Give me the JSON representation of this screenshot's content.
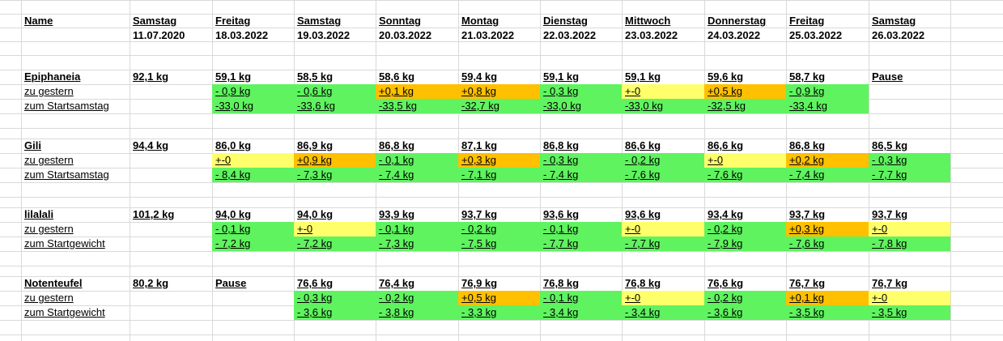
{
  "colors": {
    "green": "#5ff35f",
    "yellow": "#ffff6b",
    "orange": "#ffc000",
    "grid": "#d9d9d9"
  },
  "header": {
    "name_label": "Name",
    "columns": [
      {
        "day": "Samstag",
        "date": "11.07.2020"
      },
      {
        "day": "Freitag",
        "date": "18.03.2022"
      },
      {
        "day": "Samstag",
        "date": "19.03.2022"
      },
      {
        "day": "Sonntag",
        "date": "20.03.2022"
      },
      {
        "day": "Montag",
        "date": "21.03.2022"
      },
      {
        "day": "Dienstag",
        "date": "22.03.2022"
      },
      {
        "day": "Mittwoch",
        "date": "23.03.2022"
      },
      {
        "day": "Donnerstag",
        "date": "24.03.2022"
      },
      {
        "day": "Freitag",
        "date": "25.03.2022"
      },
      {
        "day": "Samstag",
        "date": "26.03.2022"
      }
    ]
  },
  "people": [
    {
      "name": "Epiphaneia",
      "weights": [
        "92,1 kg",
        "59,1 kg",
        "58,5 kg",
        "58,6 kg",
        "59,4 kg",
        "59,1 kg",
        "59,1 kg",
        "59,6 kg",
        "58,7 kg",
        "Pause"
      ],
      "row2_label": "zu gestern",
      "row2": [
        {
          "v": "",
          "c": ""
        },
        {
          "v": "- 0,9 kg",
          "c": "g"
        },
        {
          "v": "- 0,6 kg",
          "c": "g"
        },
        {
          "v": "+0,1 kg",
          "c": "o"
        },
        {
          "v": "+0,8 kg",
          "c": "o"
        },
        {
          "v": "- 0,3 kg",
          "c": "g"
        },
        {
          "v": "+-0",
          "c": "y"
        },
        {
          "v": "+0,5 kg",
          "c": "o"
        },
        {
          "v": "- 0,9 kg",
          "c": "g"
        },
        {
          "v": "",
          "c": ""
        }
      ],
      "row3_label": "zum Startsamstag",
      "row3": [
        {
          "v": "",
          "c": ""
        },
        {
          "v": "-33,0 kg",
          "c": "g"
        },
        {
          "v": "-33,6 kg",
          "c": "g"
        },
        {
          "v": "-33,5 kg",
          "c": "g"
        },
        {
          "v": "-32,7 kg",
          "c": "g"
        },
        {
          "v": "-33,0 kg",
          "c": "g"
        },
        {
          "v": "-33,0 kg",
          "c": "g"
        },
        {
          "v": "-32,5 kg",
          "c": "g"
        },
        {
          "v": "-33,4 kg",
          "c": "g"
        },
        {
          "v": "",
          "c": ""
        }
      ]
    },
    {
      "name": "Gili",
      "weights": [
        "94,4 kg",
        "86,0 kg",
        "86,9 kg",
        "86,8 kg",
        "87,1 kg",
        "86,8 kg",
        "86,6 kg",
        "86,6 kg",
        "86,8 kg",
        "86,5 kg"
      ],
      "row2_label": "zu gestern",
      "row2": [
        {
          "v": "",
          "c": ""
        },
        {
          "v": "+-0",
          "c": "y"
        },
        {
          "v": "+0,9 kg",
          "c": "o"
        },
        {
          "v": "- 0,1 kg",
          "c": "g"
        },
        {
          "v": "+0,3 kg",
          "c": "o"
        },
        {
          "v": "- 0,3 kg",
          "c": "g"
        },
        {
          "v": "- 0,2 kg",
          "c": "g"
        },
        {
          "v": "+-0",
          "c": "y"
        },
        {
          "v": "+0,2 kg",
          "c": "o"
        },
        {
          "v": "- 0,3 kg",
          "c": "g"
        }
      ],
      "row3_label": "zum Startsamstag",
      "row3": [
        {
          "v": "",
          "c": ""
        },
        {
          "v": "- 8,4 kg",
          "c": "g"
        },
        {
          "v": "- 7,3 kg",
          "c": "g"
        },
        {
          "v": "- 7,4 kg",
          "c": "g"
        },
        {
          "v": "- 7,1 kg",
          "c": "g"
        },
        {
          "v": "- 7,4 kg",
          "c": "g"
        },
        {
          "v": "- 7,6 kg",
          "c": "g"
        },
        {
          "v": "- 7,6 kg",
          "c": "g"
        },
        {
          "v": "- 7,4 kg",
          "c": "g"
        },
        {
          "v": "- 7,7 kg",
          "c": "g"
        }
      ]
    },
    {
      "name": "lilalali",
      "weights": [
        "101,2 kg",
        "94,0 kg",
        "94,0 kg",
        "93,9 kg",
        "93,7 kg",
        "93,6 kg",
        "93,6 kg",
        "93,4 kg",
        "93,7 kg",
        "93,7 kg"
      ],
      "row2_label": "zu gestern",
      "row2": [
        {
          "v": "",
          "c": ""
        },
        {
          "v": "- 0,1 kg",
          "c": "g"
        },
        {
          "v": "+-0",
          "c": "y"
        },
        {
          "v": "- 0,1 kg",
          "c": "g"
        },
        {
          "v": "- 0,2 kg",
          "c": "g"
        },
        {
          "v": "- 0,1 kg",
          "c": "g"
        },
        {
          "v": "+-0",
          "c": "y"
        },
        {
          "v": "- 0,2 kg",
          "c": "g"
        },
        {
          "v": "+0,3 kg",
          "c": "o"
        },
        {
          "v": "+-0",
          "c": "y"
        }
      ],
      "row3_label": "zum Startgewicht",
      "row3": [
        {
          "v": "",
          "c": ""
        },
        {
          "v": "- 7,2 kg",
          "c": "g"
        },
        {
          "v": "- 7,2 kg",
          "c": "g"
        },
        {
          "v": "- 7,3 kg",
          "c": "g"
        },
        {
          "v": "- 7,5 kg",
          "c": "g"
        },
        {
          "v": "- 7,7 kg",
          "c": "g"
        },
        {
          "v": "- 7,7 kg",
          "c": "g"
        },
        {
          "v": "- 7,9 kg",
          "c": "g"
        },
        {
          "v": "- 7,6 kg",
          "c": "g"
        },
        {
          "v": "- 7,8 kg",
          "c": "g"
        }
      ]
    },
    {
      "name": "Notenteufel",
      "weights": [
        "80,2 kg",
        "Pause",
        "76,6 kg",
        "76,4 kg",
        "76,9 kg",
        "76,8 kg",
        "76,8 kg",
        "76,6 kg",
        "76,7 kg",
        "76,7 kg"
      ],
      "row2_label": "zu gestern",
      "row2": [
        {
          "v": "",
          "c": ""
        },
        {
          "v": "",
          "c": ""
        },
        {
          "v": "- 0,3 kg",
          "c": "g"
        },
        {
          "v": "- 0,2 kg",
          "c": "g"
        },
        {
          "v": "+0,5 kg",
          "c": "o"
        },
        {
          "v": "- 0,1 kg",
          "c": "g"
        },
        {
          "v": "+-0",
          "c": "y"
        },
        {
          "v": "- 0,2 kg",
          "c": "g"
        },
        {
          "v": "+0,1 kg",
          "c": "o"
        },
        {
          "v": "+-0",
          "c": "y"
        }
      ],
      "row3_label": "zum Startgewicht",
      "row3": [
        {
          "v": "",
          "c": ""
        },
        {
          "v": "",
          "c": ""
        },
        {
          "v": "- 3,6 kg",
          "c": "g"
        },
        {
          "v": "- 3,8 kg",
          "c": "g"
        },
        {
          "v": "- 3,3 kg",
          "c": "g"
        },
        {
          "v": "- 3,4 kg",
          "c": "g"
        },
        {
          "v": "- 3,4 kg",
          "c": "g"
        },
        {
          "v": "- 3,6 kg",
          "c": "g"
        },
        {
          "v": "- 3,5 kg",
          "c": "g"
        },
        {
          "v": "- 3,5 kg",
          "c": "g"
        }
      ]
    }
  ]
}
